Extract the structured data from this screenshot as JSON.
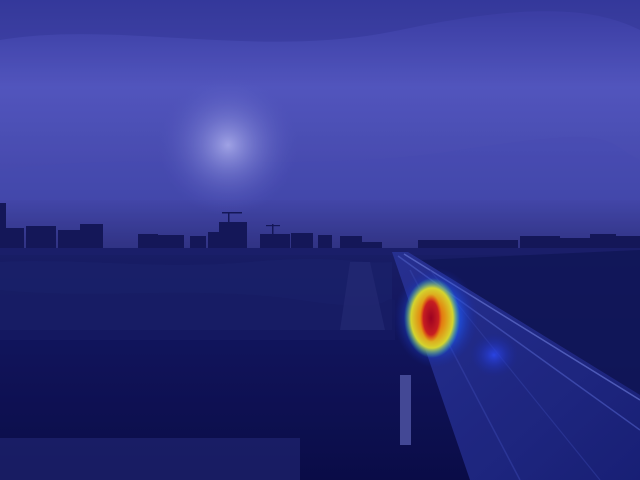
{
  "scene": {
    "description_kind": "attention-heatmap-overlay",
    "palette": {
      "sky_top": "#4a4fb0",
      "sky_mid": "#6266c8",
      "sky_horizon": "#3a3d8c",
      "skyline": "#14164e",
      "ground_dark": "#0d0f44",
      "ground_mid": "#151a5a",
      "road": "#1f2a78",
      "heat_hot": "#d01010",
      "heat_warm": "#ffd000",
      "heat_cool": "#20c0ff",
      "heat_outer": "#2040ff"
    }
  }
}
